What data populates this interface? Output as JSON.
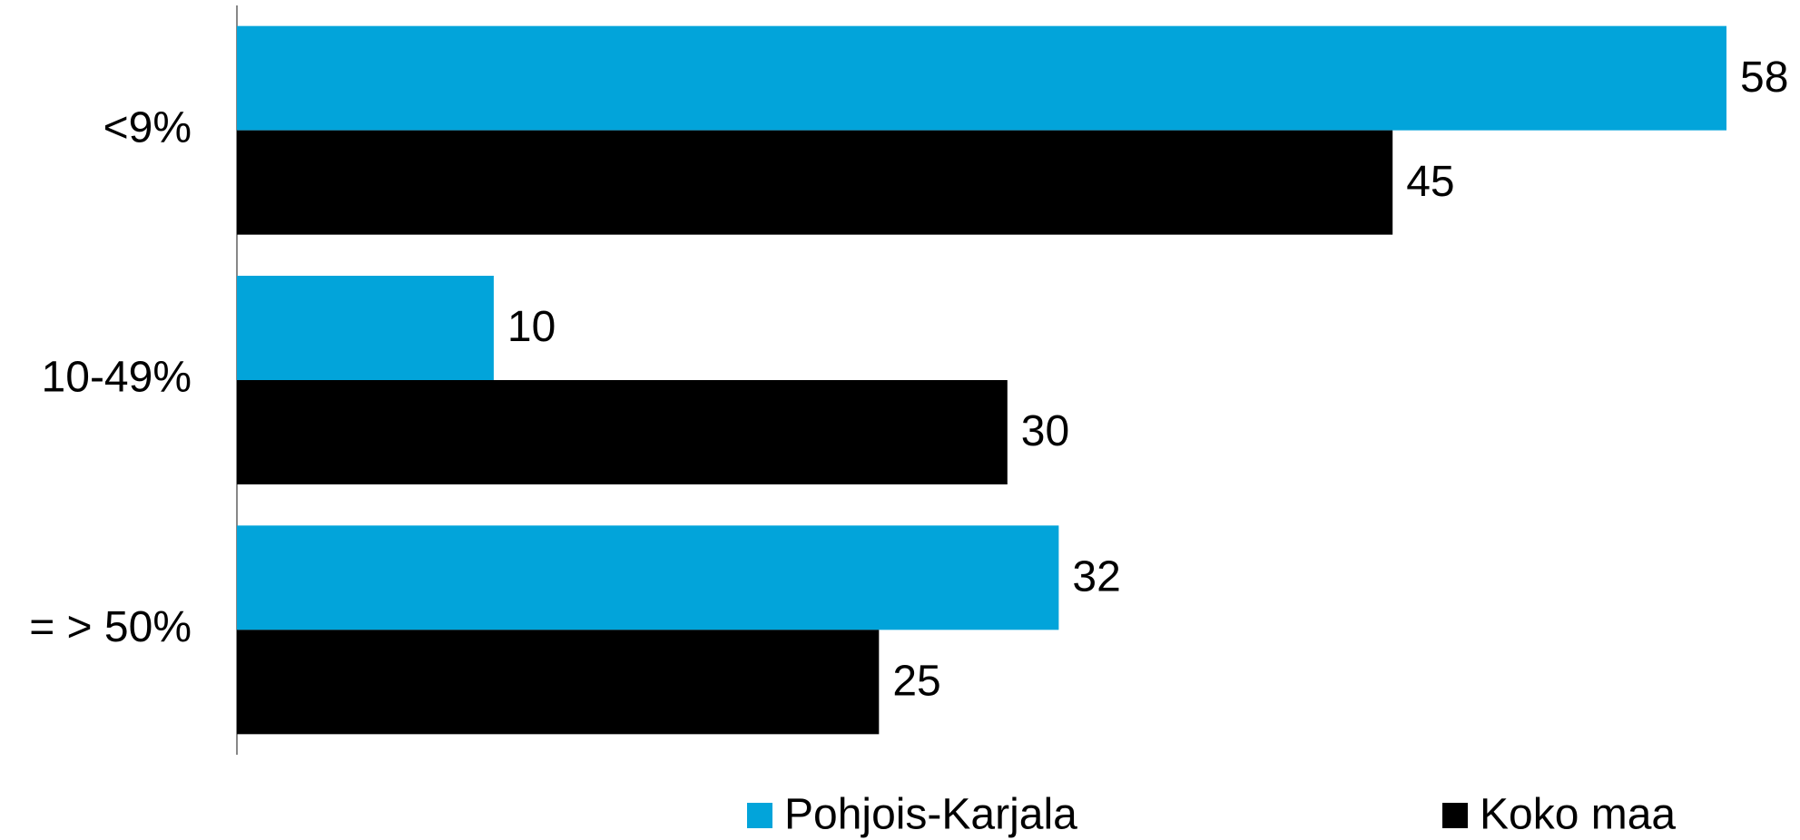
{
  "chart_data": {
    "type": "bar",
    "orientation": "horizontal",
    "categories": [
      "<9%",
      "10-49%",
      "= > 50%"
    ],
    "series": [
      {
        "name": "Pohjois-Karjala",
        "color": "#02a4da",
        "values": [
          58,
          10,
          32
        ]
      },
      {
        "name": "Koko maa",
        "color": "#000000",
        "values": [
          45,
          30,
          25
        ]
      }
    ],
    "xlim": [
      0,
      58
    ],
    "legend": "bottom"
  }
}
